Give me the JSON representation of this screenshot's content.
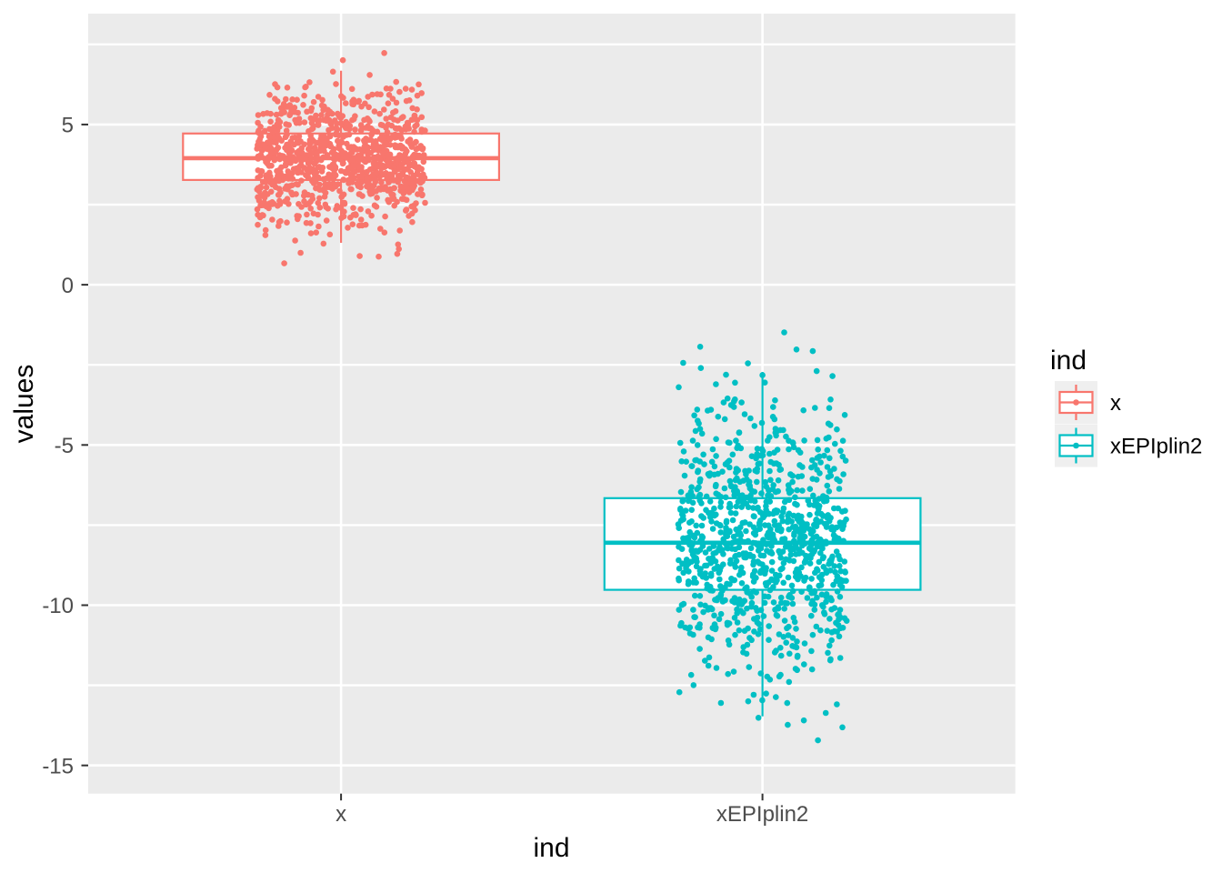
{
  "chart_data": {
    "type": "boxplot_jitter",
    "title": "",
    "xlabel": "ind",
    "ylabel": "values",
    "categories": [
      "x",
      "xEPIplin2"
    ],
    "y_axis": {
      "major_ticks": [
        5,
        0,
        -5,
        -10,
        -15
      ],
      "major_tick_labels": [
        "5",
        "0",
        "-5",
        "-10",
        "-15"
      ],
      "minor_ticks": [
        7.5,
        2.5,
        -2.5,
        -7.5,
        -12.5
      ],
      "ylim_top": 8.46,
      "ylim_bottom": -15.88
    },
    "legend": {
      "title": "ind",
      "position": "right",
      "entries": [
        {
          "label": "x",
          "color": "#F8766D"
        },
        {
          "label": "xEPIplin2",
          "color": "#00BFC4"
        }
      ]
    },
    "series": [
      {
        "name": "x",
        "color": "#F8766D",
        "n_points": 1000,
        "mean": 3.97,
        "sd": 1.05,
        "box": {
          "whisker_low": 1.31,
          "q1": 3.27,
          "median": 3.95,
          "q3": 4.72,
          "whisker_high": 6.68
        },
        "observed_min": 0.5,
        "observed_max": 7.44
      },
      {
        "name": "xEPIplin2",
        "color": "#00BFC4",
        "n_points": 1000,
        "mean": -8.05,
        "sd": 2.1,
        "box": {
          "whisker_low": -13.47,
          "q1": -9.52,
          "median": -8.05,
          "q3": -6.66,
          "whisker_high": -2.72
        },
        "observed_min": -14.8,
        "observed_max": -0.9
      }
    ],
    "style": {
      "panel_bg": "#EBEBEB",
      "grid_color": "#FFFFFF",
      "axis_text_color": "#4D4D4D",
      "title_color": "#000000",
      "tick_mark_color": "#333333",
      "legend_key_bg": "#EFEFEF",
      "box_fill": "#FFFFFF"
    }
  }
}
